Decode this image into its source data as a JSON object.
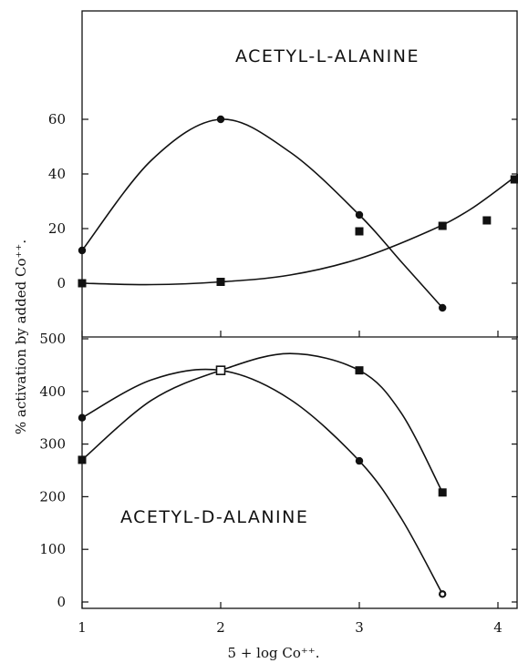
{
  "chart_data": {
    "type": "scatter",
    "xlabel": "5 + log Co⁺⁺.",
    "ylabel": "% activation by added Co⁺⁺.",
    "x_ticks": [
      "1",
      "2",
      "3",
      "4"
    ],
    "xlim": [
      1,
      4.15
    ],
    "grid": false,
    "panels": [
      {
        "title": "ACETYL-L-ALANINE",
        "ylim": [
          -15,
          90
        ],
        "y_ticks": [
          "0",
          "20",
          "40",
          "60"
        ],
        "y_tick_values": [
          0,
          20,
          40,
          60
        ],
        "series": [
          {
            "marker": "circle",
            "x": [
              1.0,
              2.0,
              3.0,
              3.6
            ],
            "y": [
              12,
              60,
              25,
              -9
            ],
            "curve": [
              [
                1.0,
                12
              ],
              [
                1.5,
                45
              ],
              [
                2.0,
                60
              ],
              [
                2.5,
                48
              ],
              [
                3.0,
                25
              ],
              [
                3.3,
                8
              ],
              [
                3.6,
                -9
              ]
            ]
          },
          {
            "marker": "square",
            "x": [
              1.0,
              2.0,
              3.0,
              3.6,
              3.92,
              4.12
            ],
            "y": [
              0,
              0.5,
              19,
              21,
              23,
              38
            ],
            "curve": [
              [
                1.0,
                0
              ],
              [
                1.5,
                -0.5
              ],
              [
                2.0,
                0.5
              ],
              [
                2.5,
                3
              ],
              [
                3.0,
                9
              ],
              [
                3.5,
                19
              ],
              [
                3.8,
                27
              ],
              [
                4.15,
                40
              ]
            ]
          }
        ]
      },
      {
        "title": "ACETYL-D-ALANINE",
        "ylim": [
          -15,
          500
        ],
        "y_ticks": [
          "0",
          "100",
          "200",
          "300",
          "400",
          "500"
        ],
        "y_tick_values": [
          0,
          100,
          200,
          300,
          400,
          500
        ],
        "series": [
          {
            "marker": "circle",
            "x": [
              1.0,
              2.0,
              3.0,
              3.6
            ],
            "y": [
              350,
              440,
              268,
              15
            ],
            "curve": [
              [
                1.0,
                350
              ],
              [
                1.5,
                422
              ],
              [
                2.0,
                440
              ],
              [
                2.5,
                385
              ],
              [
                3.0,
                268
              ],
              [
                3.3,
                160
              ],
              [
                3.6,
                15
              ]
            ]
          },
          {
            "marker": "square",
            "x": [
              1.0,
              2.0,
              3.0,
              3.6
            ],
            "y": [
              270,
              440,
              440,
              208
            ],
            "curve": [
              [
                1.0,
                270
              ],
              [
                1.5,
                383
              ],
              [
                2.0,
                440
              ],
              [
                2.5,
                472
              ],
              [
                3.0,
                440
              ],
              [
                3.3,
                360
              ],
              [
                3.6,
                208
              ]
            ]
          },
          {
            "marker": "open-square",
            "x": [
              2.0
            ],
            "y": [
              440
            ],
            "curve": []
          }
        ]
      }
    ]
  }
}
